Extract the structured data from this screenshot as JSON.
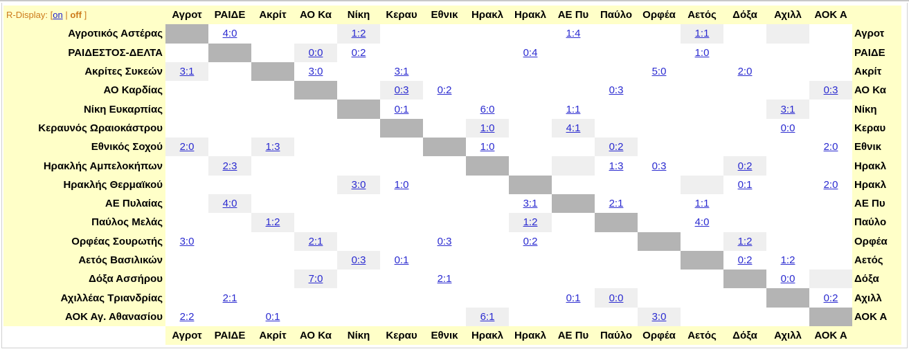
{
  "r_display": {
    "label": "R-Display:",
    "open": "[",
    "on": "on",
    "sep": "|",
    "off": "off",
    "close": "]"
  },
  "columns": [
    "Αγροτ",
    "ΡΑΙΔΕ",
    "Ακρίτ",
    "ΑΟ Κα",
    "Νίκη",
    "Κεραυ",
    "Εθνικ",
    "Ηρακλ",
    "Ηρακλ",
    "ΑΕ Πυ",
    "Παύλο",
    "Ορφέα",
    "Αετός",
    "Δόξα",
    "Αχιλλ",
    "ΑΟΚ Α"
  ],
  "colors": {
    "label_bg": "#ffffc8",
    "diagonal": "#b4b4b4",
    "shaded": "#efefef",
    "link": "#2a2ad0"
  },
  "rows": [
    {
      "name": "Αγροτικός Αστέρας",
      "short": "Αγροτ",
      "cells": [
        "",
        "4:0",
        "",
        "",
        "1:2",
        "",
        "",
        "",
        "",
        "1:4",
        "",
        "",
        "1:1",
        "",
        "",
        ""
      ],
      "shaded": [
        4,
        12,
        14
      ]
    },
    {
      "name": "ΡΑΙΔΕΣΤΟΣ-ΔΕΛΤΑ",
      "short": "ΡΑΙΔΕ",
      "cells": [
        "",
        "",
        "",
        "0:0",
        "0:2",
        "",
        "",
        "",
        "0:4",
        "",
        "",
        "",
        "1:0",
        "",
        "",
        ""
      ],
      "shaded": [
        3
      ]
    },
    {
      "name": "Ακρίτες Συκεών",
      "short": "Ακρίτ",
      "cells": [
        "3:1",
        "",
        "",
        "3:0",
        "",
        "3:1",
        "",
        "",
        "",
        "",
        "",
        "5:0",
        "",
        "2:0",
        "",
        ""
      ],
      "shaded": [
        0
      ]
    },
    {
      "name": "ΑΟ Καρδίας",
      "short": "ΑΟ Κα",
      "cells": [
        "",
        "",
        "",
        "",
        "",
        "0:3",
        "0:2",
        "",
        "",
        "",
        "0:3",
        "",
        "",
        "",
        "",
        "0:3"
      ],
      "shaded": [
        5,
        15
      ]
    },
    {
      "name": "Νίκη Ευκαρπίας",
      "short": "Νίκη",
      "cells": [
        "",
        "",
        "",
        "",
        "",
        "0:1",
        "",
        "6:0",
        "",
        "1:1",
        "",
        "",
        "",
        "",
        "3:1",
        ""
      ],
      "shaded": [
        14
      ]
    },
    {
      "name": "Κεραυνός Ωραιοκάστρου",
      "short": "Κεραυ",
      "cells": [
        "",
        "",
        "",
        "",
        "",
        "",
        "",
        "1:0",
        "",
        "4:1",
        "",
        "",
        "",
        "",
        "0:0",
        ""
      ],
      "shaded": [
        7,
        9
      ]
    },
    {
      "name": "Εθνικός Σοχού",
      "short": "Εθνικ",
      "cells": [
        "2:0",
        "",
        "1:3",
        "",
        "",
        "",
        "",
        "1:0",
        "",
        "",
        "0:2",
        "",
        "",
        "",
        "",
        "2:0"
      ],
      "shaded": [
        0,
        2,
        10
      ]
    },
    {
      "name": "Ηρακλής Αμπελοκήπων",
      "short": "Ηρακλ",
      "cells": [
        "",
        "2:3",
        "",
        "",
        "",
        "",
        "",
        "",
        "",
        "",
        "1:3",
        "0:3",
        "",
        "0:2",
        "",
        ""
      ],
      "shaded": [
        1,
        9,
        13
      ]
    },
    {
      "name": "Ηρακλής Θερμαϊκού",
      "short": "Ηρακλ",
      "cells": [
        "",
        "",
        "",
        "",
        "3:0",
        "1:0",
        "",
        "",
        "",
        "",
        "",
        "",
        "",
        "0:1",
        "",
        "2:0"
      ],
      "shaded": [
        4,
        12
      ]
    },
    {
      "name": "ΑΕ Πυλαίας",
      "short": "ΑΕ Πυ",
      "cells": [
        "",
        "4:0",
        "",
        "",
        "",
        "",
        "",
        "",
        "3:1",
        "",
        "2:1",
        "",
        "1:1",
        "",
        "",
        ""
      ],
      "shaded": [
        1
      ]
    },
    {
      "name": "Παύλος Μελάς",
      "short": "Παύλο",
      "cells": [
        "",
        "",
        "1:2",
        "",
        "",
        "",
        "",
        "",
        "1:2",
        "",
        "",
        "",
        "4:0",
        "",
        "",
        ""
      ],
      "shaded": [
        2,
        8
      ]
    },
    {
      "name": "Ορφέας Σουρωτής",
      "short": "Ορφέα",
      "cells": [
        "3:0",
        "",
        "",
        "2:1",
        "",
        "",
        "0:3",
        "",
        "0:2",
        "",
        "",
        "",
        "",
        "1:2",
        "",
        ""
      ],
      "shaded": [
        3,
        13
      ]
    },
    {
      "name": "Αετός Βασιλικών",
      "short": "Αετός",
      "cells": [
        "",
        "",
        "",
        "",
        "0:3",
        "0:1",
        "",
        "",
        "",
        "",
        "",
        "",
        "",
        "0:2",
        "1:2",
        ""
      ],
      "shaded": [
        4
      ]
    },
    {
      "name": "Δόξα Ασσήρου",
      "short": "Δόξα",
      "cells": [
        "",
        "",
        "",
        "7:0",
        "",
        "",
        "2:1",
        "",
        "",
        "",
        "",
        "",
        "",
        "",
        "0:0",
        ""
      ],
      "shaded": [
        3,
        15
      ]
    },
    {
      "name": "Αχιλλέας Τριανδρίας",
      "short": "Αχιλλ",
      "cells": [
        "",
        "2:1",
        "",
        "",
        "",
        "",
        "",
        "",
        "",
        "0:1",
        "0:0",
        "",
        "",
        "",
        "",
        "0:2"
      ],
      "shaded": [
        10
      ]
    },
    {
      "name": "ΑΟΚ Αγ. Αθανασίου",
      "short": "ΑΟΚ Α",
      "cells": [
        "2:2",
        "",
        "0:1",
        "",
        "",
        "",
        "",
        "6:1",
        "",
        "",
        "",
        "3:0",
        "",
        "",
        "",
        ""
      ],
      "shaded": [
        7,
        11
      ]
    }
  ]
}
